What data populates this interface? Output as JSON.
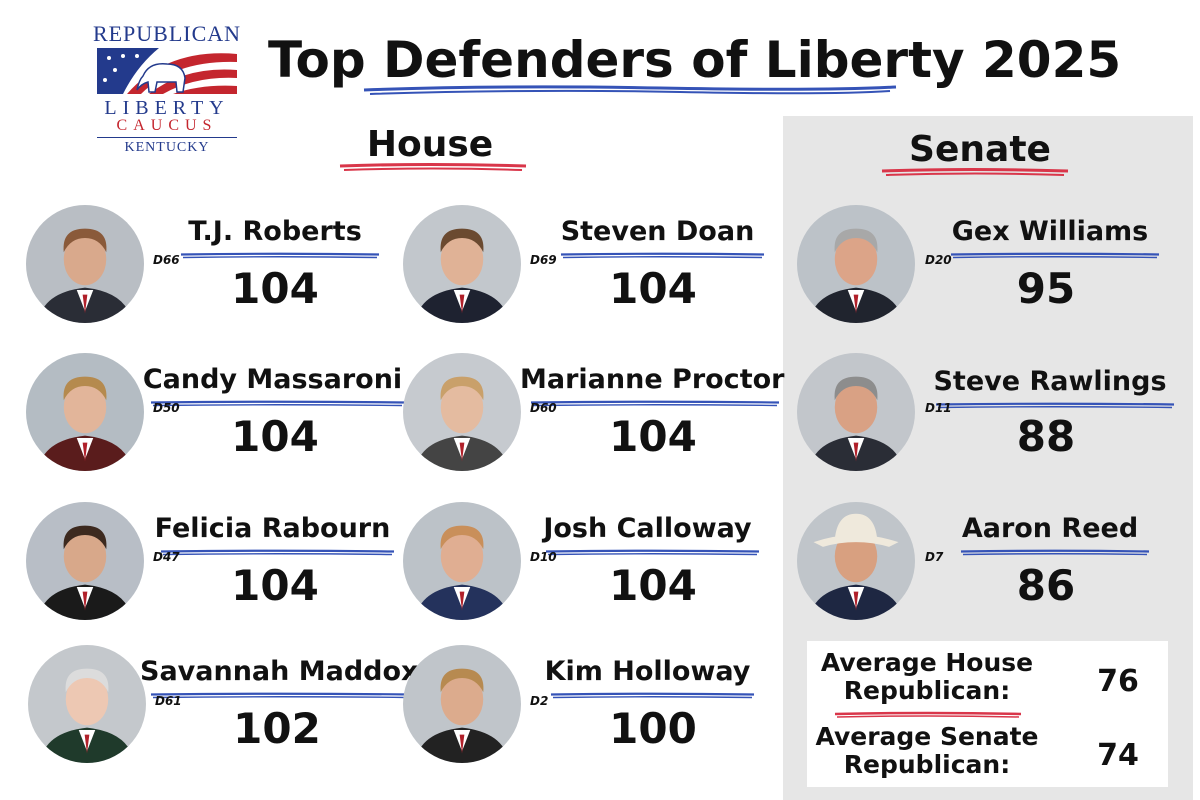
{
  "logo": {
    "line1": "REPUBLICAN",
    "line2": "LIBERTY",
    "line3": "CAUCUS",
    "line4": "KENTUCKY"
  },
  "title": "Top Defenders of Liberty 2025",
  "house": {
    "heading": "House",
    "members": [
      {
        "name": "T.J. Roberts",
        "district": "D66",
        "score": "104"
      },
      {
        "name": "Steven Doan",
        "district": "D69",
        "score": "104"
      },
      {
        "name": "Candy Massaroni",
        "district": "D50",
        "score": "104"
      },
      {
        "name": "Marianne Proctor",
        "district": "D60",
        "score": "104"
      },
      {
        "name": "Felicia Rabourn",
        "district": "D47",
        "score": "104"
      },
      {
        "name": "Josh Calloway",
        "district": "D10",
        "score": "104"
      },
      {
        "name": "Savannah Maddox",
        "district": "D61",
        "score": "102"
      },
      {
        "name": "Kim Holloway",
        "district": "D2",
        "score": "100"
      }
    ]
  },
  "senate": {
    "heading": "Senate",
    "members": [
      {
        "name": "Gex Williams",
        "district": "D20",
        "score": "95"
      },
      {
        "name": "Steve Rawlings",
        "district": "D11",
        "score": "88"
      },
      {
        "name": "Aaron Reed",
        "district": "D7",
        "score": "86"
      }
    ]
  },
  "averages": {
    "house_label": "Average House Republican:",
    "house_value": "76",
    "senate_label": "Average Senate Republican:",
    "senate_value": "74"
  },
  "colors": {
    "blue_underline": "#3553b7",
    "red_underline": "#d9364a",
    "senate_panel": "#e6e6e6",
    "logo_blue": "#233a8c",
    "logo_red": "#c4262e"
  }
}
